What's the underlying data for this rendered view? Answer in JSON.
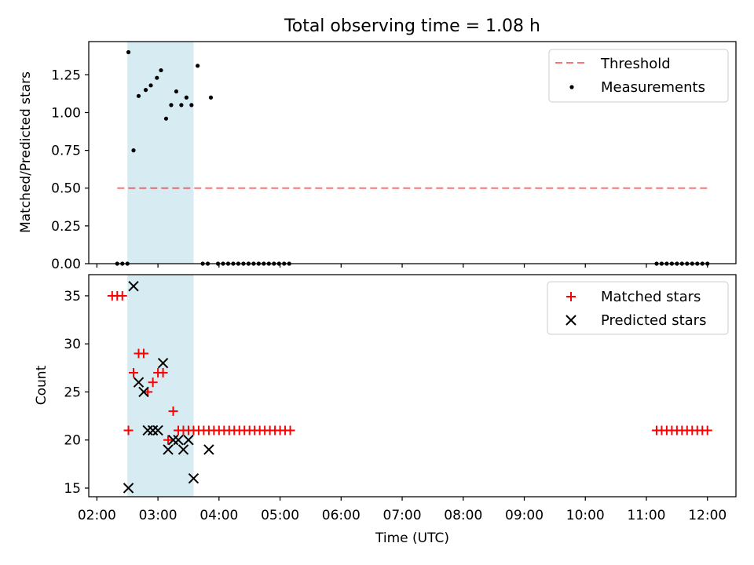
{
  "title": "Total observing time = 1.08 h",
  "colors": {
    "highlight": "#add8e6",
    "threshold": "#ff0000",
    "measurements": "#000000",
    "matched": "#ff0000",
    "predicted": "#000000"
  },
  "chart_data": [
    {
      "type": "scatter",
      "title": "Total observing time = 1.08 h",
      "xlabel": "",
      "ylabel": "Matched/Predicted stars",
      "xlim": [
        "01:52",
        "12:28"
      ],
      "ylim": [
        0,
        1.47
      ],
      "yticks": [
        0.0,
        0.25,
        0.5,
        0.75,
        1.0,
        1.25
      ],
      "ytick_labels": [
        "0.00",
        "0.25",
        "0.50",
        "0.75",
        "1.00",
        "1.25"
      ],
      "highlight_span": [
        "02:30",
        "03:35"
      ],
      "legend_position": "upper right",
      "legend": [
        "Threshold",
        "Measurements"
      ],
      "threshold": {
        "name": "Threshold",
        "x": [
          "02:20",
          "12:00"
        ],
        "y": 0.5,
        "style": "dashed"
      },
      "series": [
        {
          "name": "Measurements",
          "marker": "dot",
          "points": [
            [
              "02:20",
              0.0
            ],
            [
              "02:25",
              0.0
            ],
            [
              "02:30",
              0.0
            ],
            [
              "02:31",
              1.4
            ],
            [
              "02:36",
              0.75
            ],
            [
              "02:41",
              1.11
            ],
            [
              "02:48",
              1.15
            ],
            [
              "02:53",
              1.18
            ],
            [
              "02:59",
              1.23
            ],
            [
              "03:03",
              1.28
            ],
            [
              "03:08",
              0.96
            ],
            [
              "03:13",
              1.05
            ],
            [
              "03:18",
              1.14
            ],
            [
              "03:23",
              1.05
            ],
            [
              "03:28",
              1.1
            ],
            [
              "03:33",
              1.05
            ],
            [
              "03:39",
              1.31
            ],
            [
              "03:44",
              0.0
            ],
            [
              "03:49",
              0.0
            ],
            [
              "03:52",
              1.1
            ],
            [
              "03:59",
              0.0
            ],
            [
              "04:04",
              0.0
            ],
            [
              "04:09",
              0.0
            ],
            [
              "04:14",
              0.0
            ],
            [
              "04:19",
              0.0
            ],
            [
              "04:24",
              0.0
            ],
            [
              "04:29",
              0.0
            ],
            [
              "04:34",
              0.0
            ],
            [
              "04:39",
              0.0
            ],
            [
              "04:44",
              0.0
            ],
            [
              "04:49",
              0.0
            ],
            [
              "04:54",
              0.0
            ],
            [
              "04:59",
              0.0
            ],
            [
              "05:04",
              0.0
            ],
            [
              "05:09",
              0.0
            ],
            [
              "11:10",
              0.0
            ],
            [
              "11:15",
              0.0
            ],
            [
              "11:20",
              0.0
            ],
            [
              "11:25",
              0.0
            ],
            [
              "11:30",
              0.0
            ],
            [
              "11:35",
              0.0
            ],
            [
              "11:40",
              0.0
            ],
            [
              "11:45",
              0.0
            ],
            [
              "11:50",
              0.0
            ],
            [
              "11:55",
              0.0
            ],
            [
              "12:00",
              0.0
            ]
          ]
        }
      ]
    },
    {
      "type": "scatter",
      "title": "",
      "xlabel": "Time (UTC)",
      "ylabel": "Count",
      "xlim": [
        "01:52",
        "12:28"
      ],
      "ylim": [
        14.1,
        37.2
      ],
      "yticks": [
        15,
        20,
        25,
        30,
        35
      ],
      "ytick_labels": [
        "15",
        "20",
        "25",
        "30",
        "35"
      ],
      "xticks": [
        "02:00",
        "03:00",
        "04:00",
        "05:00",
        "06:00",
        "07:00",
        "08:00",
        "09:00",
        "10:00",
        "11:00",
        "12:00"
      ],
      "highlight_span": [
        "02:30",
        "03:35"
      ],
      "legend_position": "upper right",
      "legend": [
        "Matched stars",
        "Predicted stars"
      ],
      "series": [
        {
          "name": "Matched stars",
          "marker": "plus",
          "points": [
            [
              "02:15",
              35
            ],
            [
              "02:20",
              35
            ],
            [
              "02:25",
              35
            ],
            [
              "02:31",
              21
            ],
            [
              "02:36",
              27
            ],
            [
              "02:41",
              29
            ],
            [
              "02:46",
              29
            ],
            [
              "02:50",
              25
            ],
            [
              "02:55",
              26
            ],
            [
              "03:00",
              27
            ],
            [
              "03:05",
              27
            ],
            [
              "03:10",
              20
            ],
            [
              "03:15",
              23
            ],
            [
              "03:20",
              21
            ],
            [
              "03:25",
              21
            ],
            [
              "03:30",
              21
            ],
            [
              "03:35",
              21
            ],
            [
              "03:40",
              21
            ],
            [
              "03:45",
              21
            ],
            [
              "03:50",
              21
            ],
            [
              "03:55",
              21
            ],
            [
              "04:00",
              21
            ],
            [
              "04:05",
              21
            ],
            [
              "04:10",
              21
            ],
            [
              "04:15",
              21
            ],
            [
              "04:20",
              21
            ],
            [
              "04:25",
              21
            ],
            [
              "04:30",
              21
            ],
            [
              "04:35",
              21
            ],
            [
              "04:40",
              21
            ],
            [
              "04:45",
              21
            ],
            [
              "04:50",
              21
            ],
            [
              "04:55",
              21
            ],
            [
              "05:00",
              21
            ],
            [
              "05:05",
              21
            ],
            [
              "05:10",
              21
            ],
            [
              "11:10",
              21
            ],
            [
              "11:15",
              21
            ],
            [
              "11:20",
              21
            ],
            [
              "11:25",
              21
            ],
            [
              "11:30",
              21
            ],
            [
              "11:35",
              21
            ],
            [
              "11:40",
              21
            ],
            [
              "11:45",
              21
            ],
            [
              "11:50",
              21
            ],
            [
              "11:55",
              21
            ],
            [
              "12:00",
              21
            ]
          ]
        },
        {
          "name": "Predicted stars",
          "marker": "x",
          "points": [
            [
              "02:31",
              15
            ],
            [
              "02:36",
              36
            ],
            [
              "02:41",
              26
            ],
            [
              "02:46",
              25
            ],
            [
              "02:50",
              21
            ],
            [
              "02:55",
              21
            ],
            [
              "03:00",
              21
            ],
            [
              "03:05",
              28
            ],
            [
              "03:10",
              19
            ],
            [
              "03:15",
              20
            ],
            [
              "03:20",
              20
            ],
            [
              "03:25",
              19
            ],
            [
              "03:30",
              20
            ],
            [
              "03:35",
              16
            ],
            [
              "03:50",
              19
            ]
          ]
        }
      ]
    }
  ]
}
